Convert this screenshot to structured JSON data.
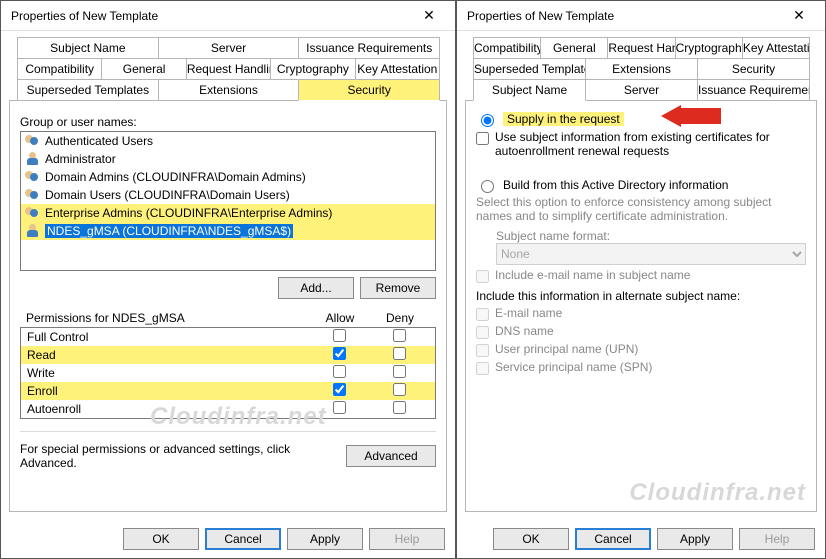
{
  "layout": {
    "total_width": 826,
    "total_height": 559,
    "left_width": 456,
    "right_width": 370
  },
  "colors": {
    "highlight_yellow": "#fff27a",
    "selection_blue": "#0a74da",
    "arrow_red": "#de2b1f",
    "border_gray": "#b5b5b5",
    "disabled_gray": "#9a9a9a"
  },
  "left": {
    "title": "Properties of New Template",
    "tabs": {
      "row1": [
        "Subject Name",
        "Server",
        "Issuance Requirements"
      ],
      "row2": [
        "Compatibility",
        "General",
        "Request Handling",
        "Cryptography",
        "Key Attestation"
      ],
      "row3": [
        "Superseded Templates",
        "Extensions",
        "Security"
      ],
      "active": "Security",
      "highlighted": "Security"
    },
    "groupLabel": "Group or user names:",
    "users": [
      {
        "icon": "users",
        "text": "Authenticated Users",
        "hl": false,
        "sel": false
      },
      {
        "icon": "user",
        "text": "Administrator",
        "hl": false,
        "sel": false
      },
      {
        "icon": "users",
        "text": "Domain Admins (CLOUDINFRA\\Domain Admins)",
        "hl": false,
        "sel": false
      },
      {
        "icon": "users",
        "text": "Domain Users (CLOUDINFRA\\Domain Users)",
        "hl": false,
        "sel": false
      },
      {
        "icon": "users",
        "text": "Enterprise Admins (CLOUDINFRA\\Enterprise Admins)",
        "hl": true,
        "sel": false
      },
      {
        "icon": "user",
        "text": "NDES_gMSA (CLOUDINFRA\\NDES_gMSA$)",
        "hl": true,
        "sel": true
      }
    ],
    "addBtn": "Add...",
    "removeBtn": "Remove",
    "permLabel": "Permissions for NDES_gMSA",
    "permCols": {
      "allow": "Allow",
      "deny": "Deny"
    },
    "perms": [
      {
        "name": "Full Control",
        "allow": false,
        "deny": false,
        "hl": false
      },
      {
        "name": "Read",
        "allow": true,
        "deny": false,
        "hl": true
      },
      {
        "name": "Write",
        "allow": false,
        "deny": false,
        "hl": false
      },
      {
        "name": "Enroll",
        "allow": true,
        "deny": false,
        "hl": true
      },
      {
        "name": "Autoenroll",
        "allow": false,
        "deny": false,
        "hl": false
      }
    ],
    "advText": "For special permissions or advanced settings, click Advanced.",
    "advBtn": "Advanced",
    "buttons": {
      "ok": "OK",
      "cancel": "Cancel",
      "apply": "Apply",
      "help": "Help"
    },
    "watermark": "Cloudinfra.net"
  },
  "right": {
    "title": "Properties of New Template",
    "tabs": {
      "row1": [
        "Compatibility",
        "General",
        "Request Handling",
        "Cryptography",
        "Key Attestation"
      ],
      "row2": [
        "Superseded Templates",
        "Extensions",
        "Security"
      ],
      "row3": [
        "Subject Name",
        "Server",
        "Issuance Requirements"
      ],
      "active": "Subject Name"
    },
    "supply": {
      "radioLabel": "Supply in the request",
      "checked": true,
      "subChkLabel": "Use subject information from existing certificates for autoenrollment renewal requests",
      "subChkChecked": false
    },
    "build": {
      "radioLabel": "Build from this Active Directory information",
      "checked": false,
      "desc": "Select this option to enforce consistency among subject names and to simplify certificate administration.",
      "snfLabel": "Subject name format:",
      "snfValue": "None",
      "emailInSubject": "Include e-mail name in subject name",
      "altHeader": "Include this information in alternate subject name:",
      "alts": [
        {
          "label": "E-mail name",
          "checked": false
        },
        {
          "label": "DNS name",
          "checked": false
        },
        {
          "label": "User principal name (UPN)",
          "checked": false
        },
        {
          "label": "Service principal name (SPN)",
          "checked": false
        }
      ]
    },
    "buttons": {
      "ok": "OK",
      "cancel": "Cancel",
      "apply": "Apply",
      "help": "Help"
    },
    "watermark": "Cloudinfra.net"
  }
}
